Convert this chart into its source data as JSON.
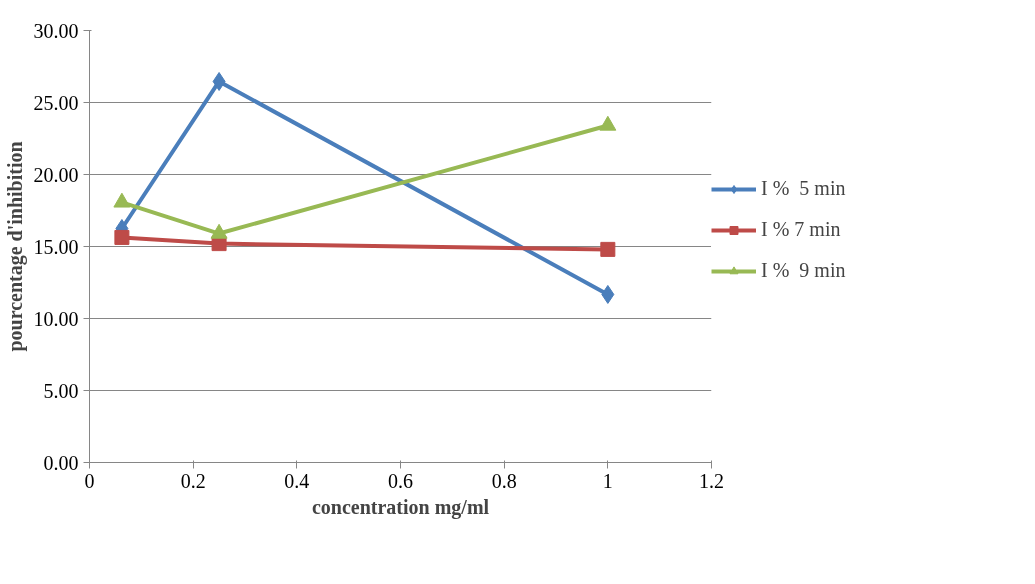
{
  "chart_data": {
    "type": "line",
    "xlabel": "concentration mg/ml",
    "ylabel": "pourcentage d'inhibition",
    "x": [
      0.0625,
      0.25,
      1
    ],
    "series": [
      {
        "name": "I %  5 min",
        "color": "#4a7ebb",
        "marker": "diamond",
        "values": [
          16.25,
          26.46,
          11.67
        ]
      },
      {
        "name": "I % 7 min",
        "color": "#be4b48",
        "marker": "square",
        "values": [
          15.63,
          15.2,
          14.8
        ]
      },
      {
        "name": "I %  9 min",
        "color": "#98b954",
        "marker": "triangle",
        "values": [
          18.06,
          15.9,
          23.4
        ]
      }
    ],
    "xlim": [
      0,
      1.2
    ],
    "xticks": [
      0,
      0.2,
      0.4,
      0.6,
      0.8,
      1,
      1.2
    ],
    "ylim": [
      0,
      30
    ],
    "yticks": [
      {
        "value": 0,
        "label": "0.00"
      },
      {
        "value": 5,
        "label": "5.00"
      },
      {
        "value": 10,
        "label": "10.00"
      },
      {
        "value": 15,
        "label": "15.00"
      },
      {
        "value": 20,
        "label": "20.00"
      },
      {
        "value": 25,
        "label": "25.00"
      },
      {
        "value": 30,
        "label": "30.00"
      }
    ],
    "grid": "y",
    "legend": "right",
    "line_style": "solid"
  }
}
